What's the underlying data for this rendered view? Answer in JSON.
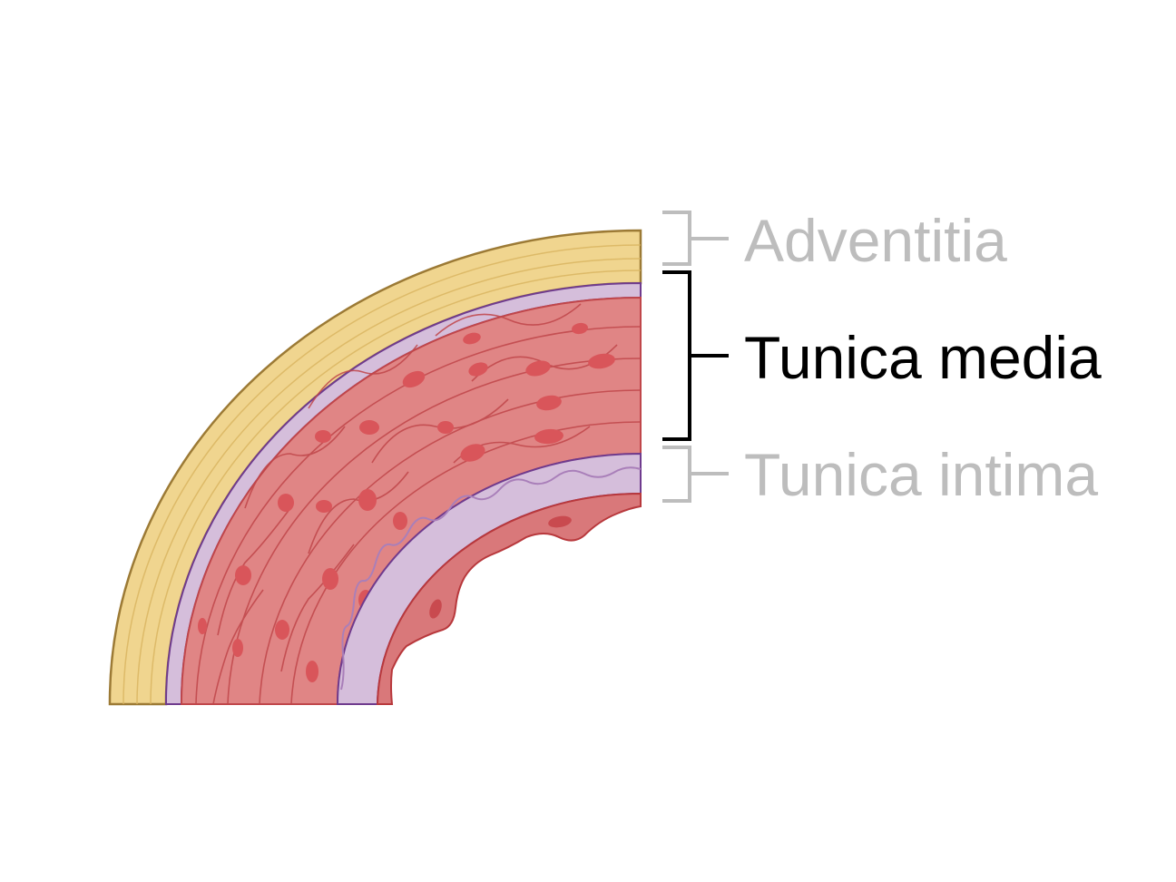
{
  "labels": {
    "adventitia": "Adventitia",
    "tunica_media": "Tunica media",
    "tunica_intima": "Tunica intima"
  },
  "colors": {
    "adventitia_fill": "#f0d58f",
    "adventitia_stroke": "#9c7a35",
    "elastic_lamina_fill": "#d5bedb",
    "elastic_lamina_stroke": "#6f3b8e",
    "media_fill": "#e08585",
    "media_cell_lines": "#c0464a",
    "media_nuclei": "#d9555a",
    "endothelium_fill": "#d9787a",
    "highlight_text": "#000000",
    "dimmed_text": "#bdbdbd"
  },
  "highlighted_layer": "tunica_media"
}
